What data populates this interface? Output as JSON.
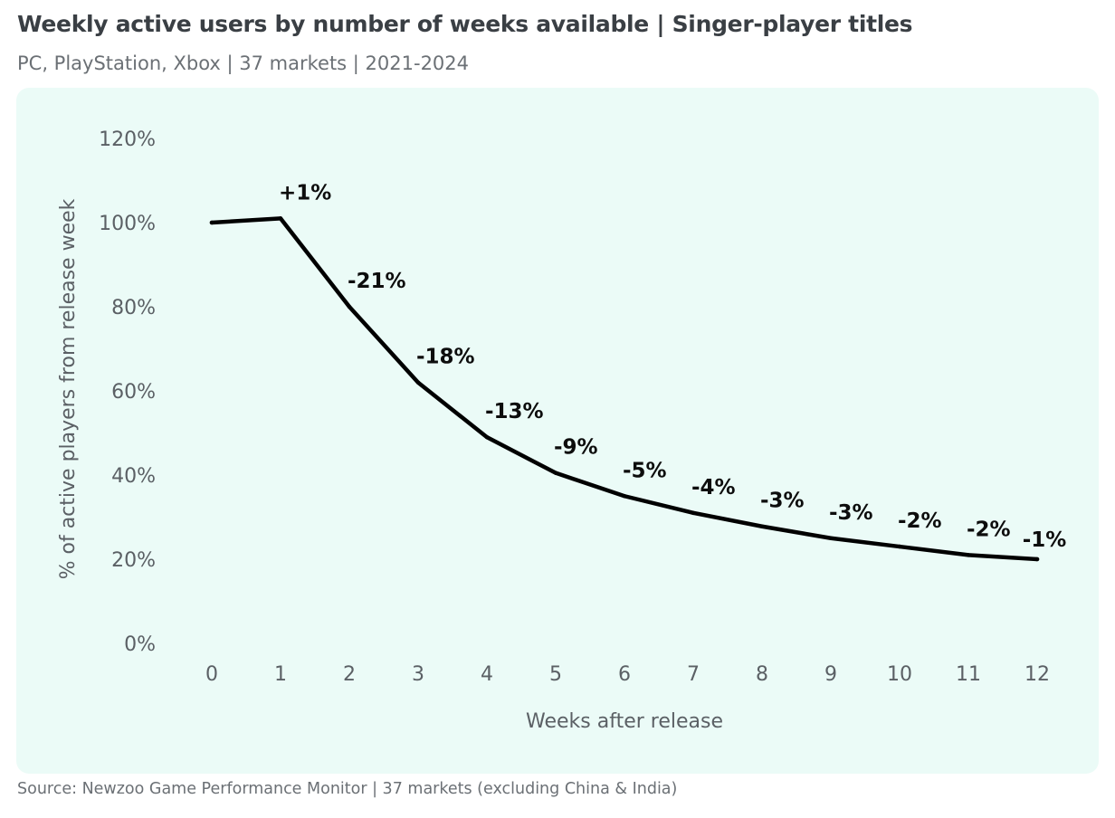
{
  "header": {
    "title": "Weekly active users by number of weeks available | Singer-player titles",
    "subtitle": "PC, PlayStation, Xbox | 37 markets | 2021-2024"
  },
  "footer": {
    "source": "Source: Newzoo Game Performance Monitor | 37 markets (excluding China & India)"
  },
  "colors": {
    "panel_background": "#ebfbf7",
    "line": "#000000",
    "text": "#5b6065"
  },
  "chart_data": {
    "type": "line",
    "title": "Weekly active users by number of weeks available | Singer-player titles",
    "xlabel": "Weeks after release",
    "ylabel": "% of active players from release week",
    "x": [
      0,
      1,
      2,
      3,
      4,
      5,
      6,
      7,
      8,
      9,
      10,
      11,
      12
    ],
    "y_ticks": [
      0,
      20,
      40,
      60,
      80,
      100,
      120
    ],
    "y_tick_labels": [
      "0%",
      "20%",
      "40%",
      "60%",
      "80%",
      "100%",
      "120%"
    ],
    "ylim": [
      0,
      120
    ],
    "grid": false,
    "series": [
      {
        "name": "Weekly active users",
        "values": [
          100,
          101,
          80,
          62,
          49,
          40.5,
          35,
          31,
          27.8,
          25,
          23,
          21,
          20
        ],
        "data_labels": [
          "",
          "+1%",
          "-21%",
          "-18%",
          "-13%",
          "-9%",
          "-5%",
          "-4%",
          "-3%",
          "-3%",
          "-2%",
          "-2%",
          "-1%"
        ]
      }
    ]
  }
}
